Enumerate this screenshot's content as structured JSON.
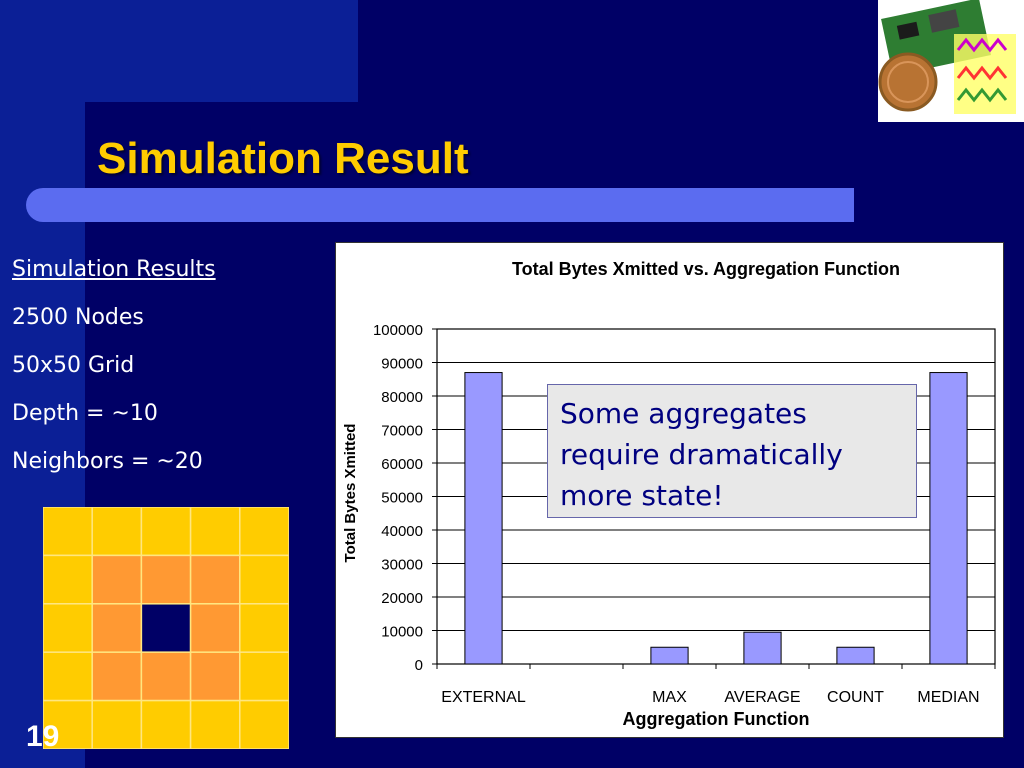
{
  "slide": {
    "title": "Simulation Result",
    "slide_number": "19"
  },
  "bullets": {
    "header": "Simulation Results",
    "items": [
      "2500 Nodes",
      "50x50 Grid",
      "Depth = ~10",
      "Neighbors = ~20"
    ]
  },
  "callout": {
    "text": "Some aggregates require dramatically more state!"
  },
  "grid_figure": {
    "rows": 5,
    "cols": 5,
    "colors": {
      "outer": "#ffcc00",
      "middle": "#ff9933",
      "center": "#000066",
      "lines": "#ffe680"
    }
  },
  "colors": {
    "background": "#000066",
    "title": "#ffcc00",
    "bar": "#9999ff"
  },
  "chart_data": {
    "type": "bar",
    "title": "Total Bytes Xmitted vs. Aggregation Function",
    "xlabel": "Aggregation Function",
    "ylabel": "Total Bytes Xmitted",
    "categories": [
      "EXTERNAL",
      "",
      "MAX",
      "AVERAGE",
      "COUNT",
      "MEDIAN"
    ],
    "values": [
      87000,
      0,
      5000,
      9500,
      5000,
      87000
    ],
    "ylim": [
      0,
      100000
    ],
    "yticks": [
      0,
      10000,
      20000,
      30000,
      40000,
      50000,
      60000,
      70000,
      80000,
      90000,
      100000
    ],
    "grid": true,
    "legend": "none"
  }
}
